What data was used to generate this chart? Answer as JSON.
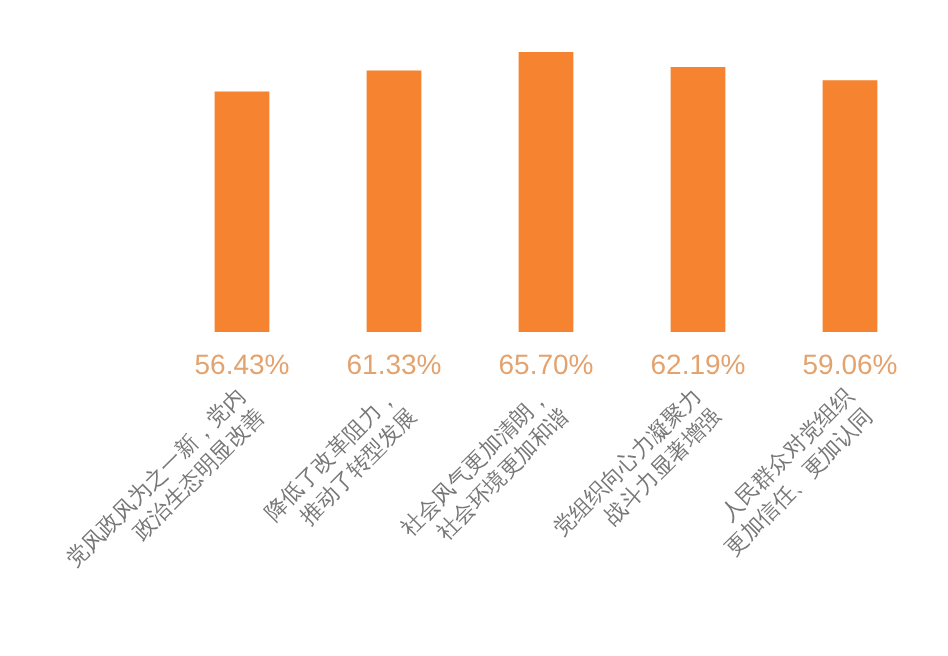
{
  "chart_data": {
    "type": "bar",
    "categories": [
      "党风政风为之一新，党内\n政治生态明显改善",
      "降低了改革阻力，\n推动了转型发展",
      "社会风气更加清朗，\n社会环境更加和谐",
      "党组织向心力凝聚力\n战斗力显著增强",
      "人民群众对党组织\n更加信任、更加认同"
    ],
    "values": [
      56.43,
      61.33,
      65.7,
      62.19,
      59.06
    ],
    "value_labels": [
      "56.43%",
      "61.33%",
      "65.70%",
      "62.19%",
      "59.06%"
    ],
    "color": "#f5832f",
    "tick_labels": "x"
  }
}
